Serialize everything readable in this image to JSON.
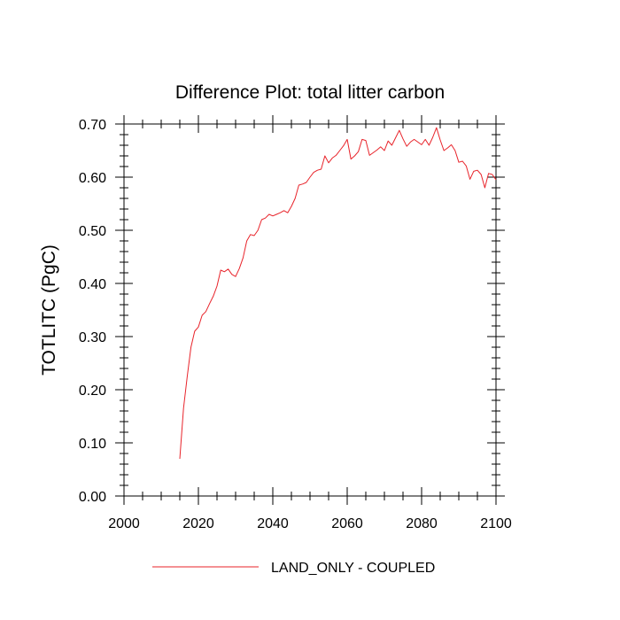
{
  "chart_data": {
    "type": "line",
    "title": "Difference Plot: total litter carbon",
    "xlabel": "",
    "ylabel": "TOTLITC  (PgC)",
    "xlim": [
      2000,
      2100
    ],
    "ylim": [
      0.0,
      0.7
    ],
    "x_ticks": [
      2000,
      2020,
      2040,
      2060,
      2080,
      2100
    ],
    "x_tick_labels": [
      "2000",
      "2020",
      "2040",
      "2060",
      "2080",
      "2100"
    ],
    "y_ticks": [
      0.0,
      0.1,
      0.2,
      0.3,
      0.4,
      0.5,
      0.6,
      0.7
    ],
    "y_tick_labels": [
      "0.00",
      "0.10",
      "0.20",
      "0.30",
      "0.40",
      "0.50",
      "0.60",
      "0.70"
    ],
    "grid": false,
    "legend_position": "bottom",
    "series": [
      {
        "name": "LAND_ONLY - COUPLED",
        "color": "#e8232a",
        "x": [
          2015,
          2016,
          2017,
          2018,
          2019,
          2020,
          2021,
          2022,
          2023,
          2024,
          2025,
          2026,
          2027,
          2028,
          2029,
          2030,
          2031,
          2032,
          2033,
          2034,
          2035,
          2036,
          2037,
          2038,
          2039,
          2040,
          2041,
          2042,
          2043,
          2044,
          2045,
          2046,
          2047,
          2048,
          2049,
          2050,
          2051,
          2052,
          2053,
          2054,
          2055,
          2056,
          2057,
          2058,
          2059,
          2060,
          2061,
          2062,
          2063,
          2064,
          2065,
          2066,
          2067,
          2068,
          2069,
          2070,
          2071,
          2072,
          2073,
          2074,
          2075,
          2076,
          2077,
          2078,
          2079,
          2080,
          2081,
          2082,
          2083,
          2084,
          2085,
          2086,
          2087,
          2088,
          2089,
          2090,
          2091,
          2092,
          2093,
          2094,
          2095,
          2096,
          2097,
          2098,
          2099,
          2100
        ],
        "values": [
          0.07,
          0.165,
          0.225,
          0.28,
          0.31,
          0.318,
          0.34,
          0.347,
          0.362,
          0.376,
          0.395,
          0.425,
          0.422,
          0.427,
          0.417,
          0.413,
          0.428,
          0.448,
          0.48,
          0.492,
          0.49,
          0.5,
          0.52,
          0.523,
          0.53,
          0.527,
          0.53,
          0.533,
          0.537,
          0.533,
          0.545,
          0.56,
          0.585,
          0.587,
          0.59,
          0.6,
          0.609,
          0.613,
          0.615,
          0.64,
          0.627,
          0.636,
          0.641,
          0.65,
          0.659,
          0.671,
          0.634,
          0.64,
          0.648,
          0.671,
          0.669,
          0.641,
          0.646,
          0.651,
          0.657,
          0.65,
          0.668,
          0.66,
          0.674,
          0.688,
          0.672,
          0.658,
          0.666,
          0.671,
          0.666,
          0.661,
          0.671,
          0.66,
          0.675,
          0.693,
          0.67,
          0.65,
          0.655,
          0.661,
          0.65,
          0.628,
          0.63,
          0.621,
          0.596,
          0.611,
          0.613,
          0.605,
          0.58,
          0.607,
          0.605,
          0.595
        ]
      }
    ]
  }
}
